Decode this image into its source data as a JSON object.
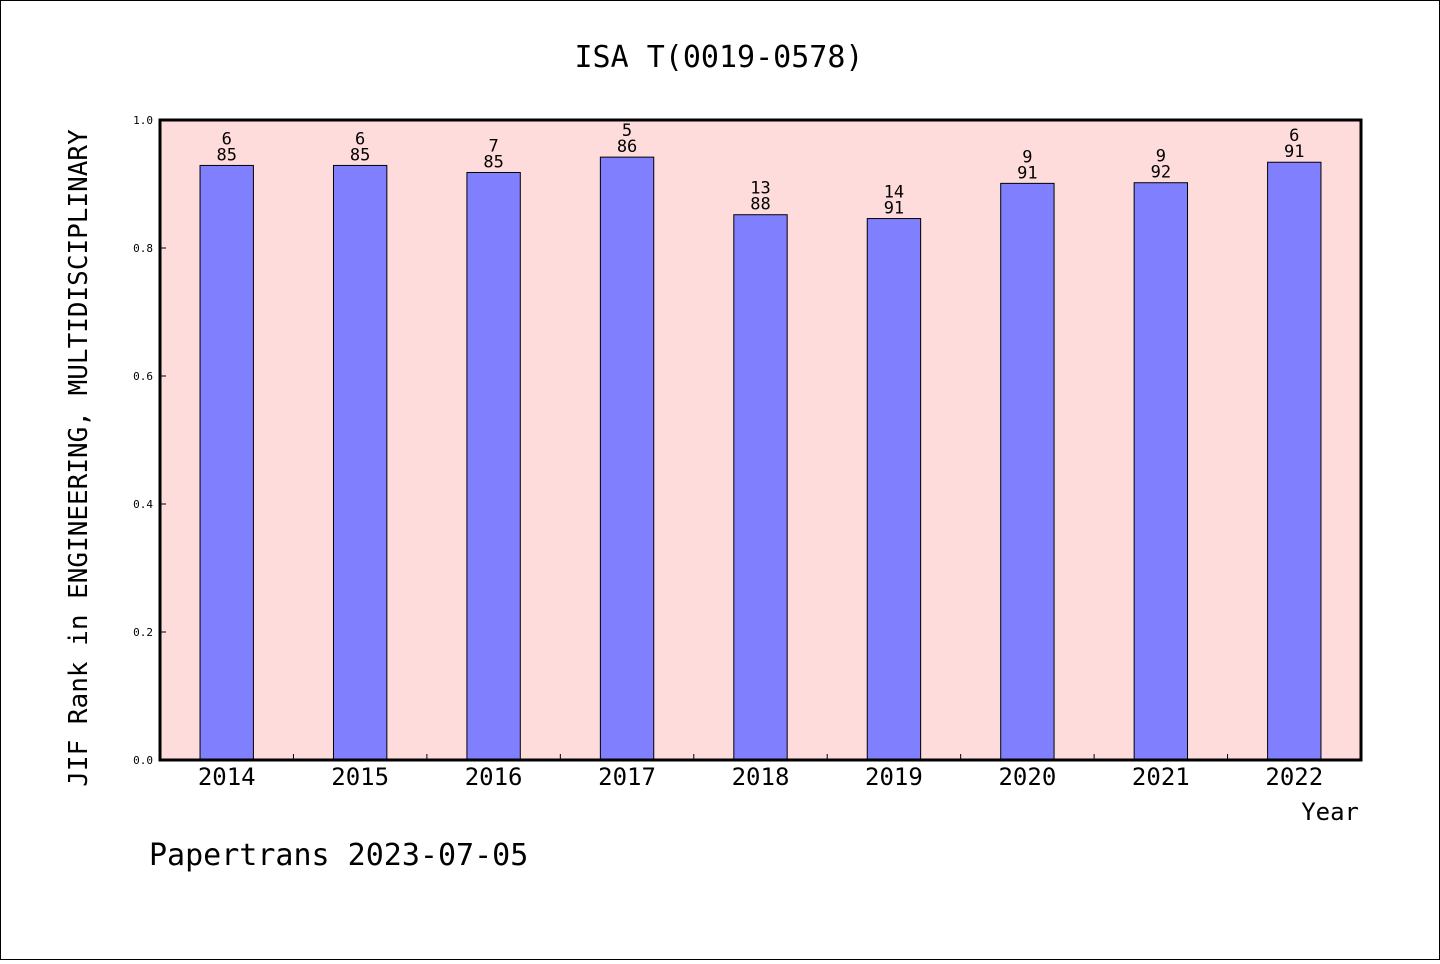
{
  "chart_data": {
    "type": "bar",
    "title": "ISA T(0019-0578)",
    "xlabel": "Year",
    "ylabel": "JIF Rank in ENGINEERING, MULTIDISCIPLINARY",
    "ylim": [
      0,
      1.0
    ],
    "yticks": [
      "0.0",
      "0.2",
      "0.4",
      "0.6",
      "0.8",
      "1.0"
    ],
    "categories": [
      "2014",
      "2015",
      "2016",
      "2017",
      "2018",
      "2019",
      "2020",
      "2021",
      "2022"
    ],
    "values": [
      0.929,
      0.929,
      0.918,
      0.942,
      0.852,
      0.846,
      0.901,
      0.902,
      0.934
    ],
    "rank": [
      "6",
      "6",
      "7",
      "5",
      "13",
      "14",
      "9",
      "9",
      "6"
    ],
    "total": [
      "85",
      "85",
      "85",
      "86",
      "88",
      "91",
      "91",
      "92",
      "91"
    ],
    "grid": false,
    "colors": {
      "bar": "#8080ff",
      "plot_background": "#ffdcdc",
      "bar_edge": "#000000"
    }
  },
  "footer": "Papertrans 2023-07-05"
}
